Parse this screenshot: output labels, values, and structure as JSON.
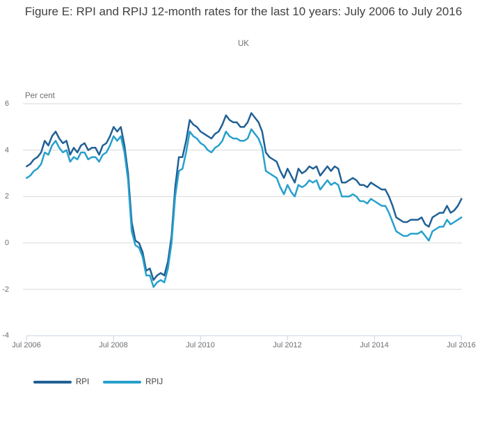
{
  "page": {
    "title": "Figure E: RPI and RPIJ 12-month rates for the last 10 years: July 2006 to July 2016",
    "subtitle": "UK"
  },
  "chart_data": {
    "type": "line",
    "title": "Figure E: RPI and RPIJ 12-month rates for the last 10 years: July 2006 to July 2016",
    "subtitle": "UK",
    "ylabel": "Per cent",
    "xlabel": "",
    "ylim": [
      -4,
      6
    ],
    "yticks": [
      6,
      4,
      2,
      0,
      -2,
      -4
    ],
    "ytick_labels": [
      "6",
      "4",
      "2",
      "0",
      "-2",
      "-4"
    ],
    "xticks": [
      "Jul 2006",
      "Jul 2008",
      "Jul 2010",
      "Jul 2012",
      "Jul 2014",
      "Jul 2016"
    ],
    "x_frequency": "monthly",
    "x_range": "Jul 2006 to Jul 2016",
    "grid": "horizontal",
    "grid_color": "#d9d9d9",
    "axis_color": "#c8d4e3",
    "text_color": "#6d6e71",
    "legend_position": "bottom-left",
    "series": [
      {
        "name": "RPI",
        "color": "#206095",
        "values": [
          3.3,
          3.4,
          3.6,
          3.7,
          3.9,
          4.4,
          4.2,
          4.6,
          4.8,
          4.5,
          4.3,
          4.4,
          3.8,
          4.1,
          3.9,
          4.2,
          4.3,
          4.0,
          4.1,
          4.1,
          3.8,
          4.2,
          4.3,
          4.6,
          5.0,
          4.8,
          5.0,
          4.2,
          3.0,
          0.9,
          0.1,
          0.0,
          -0.4,
          -1.2,
          -1.1,
          -1.6,
          -1.4,
          -1.3,
          -1.4,
          -0.8,
          0.3,
          2.4,
          3.7,
          3.7,
          4.4,
          5.3,
          5.1,
          5.0,
          4.8,
          4.7,
          4.6,
          4.5,
          4.7,
          4.8,
          5.1,
          5.5,
          5.3,
          5.2,
          5.2,
          5.0,
          5.0,
          5.2,
          5.6,
          5.4,
          5.2,
          4.8,
          3.9,
          3.7,
          3.6,
          3.5,
          3.1,
          2.8,
          3.2,
          2.9,
          2.6,
          3.2,
          3.0,
          3.1,
          3.3,
          3.2,
          3.3,
          2.9,
          3.1,
          3.3,
          3.1,
          3.3,
          3.2,
          2.6,
          2.6,
          2.7,
          2.8,
          2.7,
          2.5,
          2.5,
          2.4,
          2.6,
          2.5,
          2.4,
          2.3,
          2.3,
          2.0,
          1.6,
          1.1,
          1.0,
          0.9,
          0.9,
          1.0,
          1.0,
          1.0,
          1.1,
          0.8,
          0.7,
          1.1,
          1.2,
          1.3,
          1.3,
          1.6,
          1.3,
          1.4,
          1.6,
          1.9
        ]
      },
      {
        "name": "RPIJ",
        "color": "#27a0cc",
        "values": [
          2.8,
          2.9,
          3.1,
          3.2,
          3.4,
          3.9,
          3.8,
          4.2,
          4.4,
          4.1,
          3.9,
          4.0,
          3.5,
          3.7,
          3.6,
          3.9,
          3.9,
          3.6,
          3.7,
          3.7,
          3.5,
          3.8,
          3.9,
          4.2,
          4.6,
          4.4,
          4.6,
          3.9,
          2.7,
          0.5,
          -0.1,
          -0.2,
          -0.6,
          -1.4,
          -1.4,
          -1.9,
          -1.7,
          -1.6,
          -1.7,
          -1.1,
          0.0,
          2.0,
          3.1,
          3.2,
          3.9,
          4.8,
          4.6,
          4.5,
          4.3,
          4.2,
          4.0,
          3.9,
          4.1,
          4.2,
          4.4,
          4.8,
          4.6,
          4.5,
          4.5,
          4.4,
          4.4,
          4.5,
          4.9,
          4.7,
          4.5,
          4.1,
          3.1,
          3.0,
          2.9,
          2.8,
          2.4,
          2.1,
          2.5,
          2.2,
          2.0,
          2.5,
          2.4,
          2.5,
          2.7,
          2.6,
          2.7,
          2.3,
          2.5,
          2.7,
          2.5,
          2.6,
          2.5,
          2.0,
          2.0,
          2.0,
          2.1,
          2.0,
          1.8,
          1.8,
          1.7,
          1.9,
          1.8,
          1.7,
          1.6,
          1.6,
          1.3,
          0.9,
          0.5,
          0.4,
          0.3,
          0.3,
          0.4,
          0.4,
          0.4,
          0.5,
          0.3,
          0.1,
          0.5,
          0.6,
          0.7,
          0.7,
          1.0,
          0.8,
          0.9,
          1.0,
          1.1
        ]
      }
    ]
  }
}
